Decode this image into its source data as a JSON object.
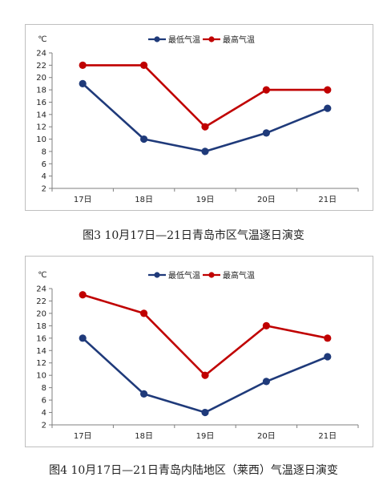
{
  "chart_data": [
    {
      "type": "line",
      "unit_label": "℃",
      "categories": [
        "17日",
        "18日",
        "19日",
        "20日",
        "21日"
      ],
      "ylim": [
        2,
        24
      ],
      "yticks": [
        2,
        4,
        6,
        8,
        10,
        12,
        14,
        16,
        18,
        20,
        22,
        24
      ],
      "grid": false,
      "legend_position": "top-center",
      "series": [
        {
          "name": "最低气温",
          "color": "#1f3a7a",
          "values": [
            19,
            10,
            8,
            11,
            15
          ]
        },
        {
          "name": "最高气温",
          "color": "#c00000",
          "values": [
            22,
            22,
            12,
            18,
            18
          ]
        }
      ],
      "caption": "图3   10月17日—21日青岛市区气温逐日演变"
    },
    {
      "type": "line",
      "unit_label": "℃",
      "categories": [
        "17日",
        "18日",
        "19日",
        "20日",
        "21日"
      ],
      "ylim": [
        2,
        24
      ],
      "yticks": [
        2,
        4,
        6,
        8,
        10,
        12,
        14,
        16,
        18,
        20,
        22,
        24
      ],
      "grid": false,
      "legend_position": "top-center",
      "series": [
        {
          "name": "最低气温",
          "color": "#1f3a7a",
          "values": [
            16,
            7,
            4,
            9,
            13
          ]
        },
        {
          "name": "最高气温",
          "color": "#c00000",
          "values": [
            23,
            20,
            10,
            18,
            16
          ]
        }
      ],
      "caption": "图4   10月17日—21日青岛内陆地区（莱西）气温逐日演变"
    }
  ]
}
